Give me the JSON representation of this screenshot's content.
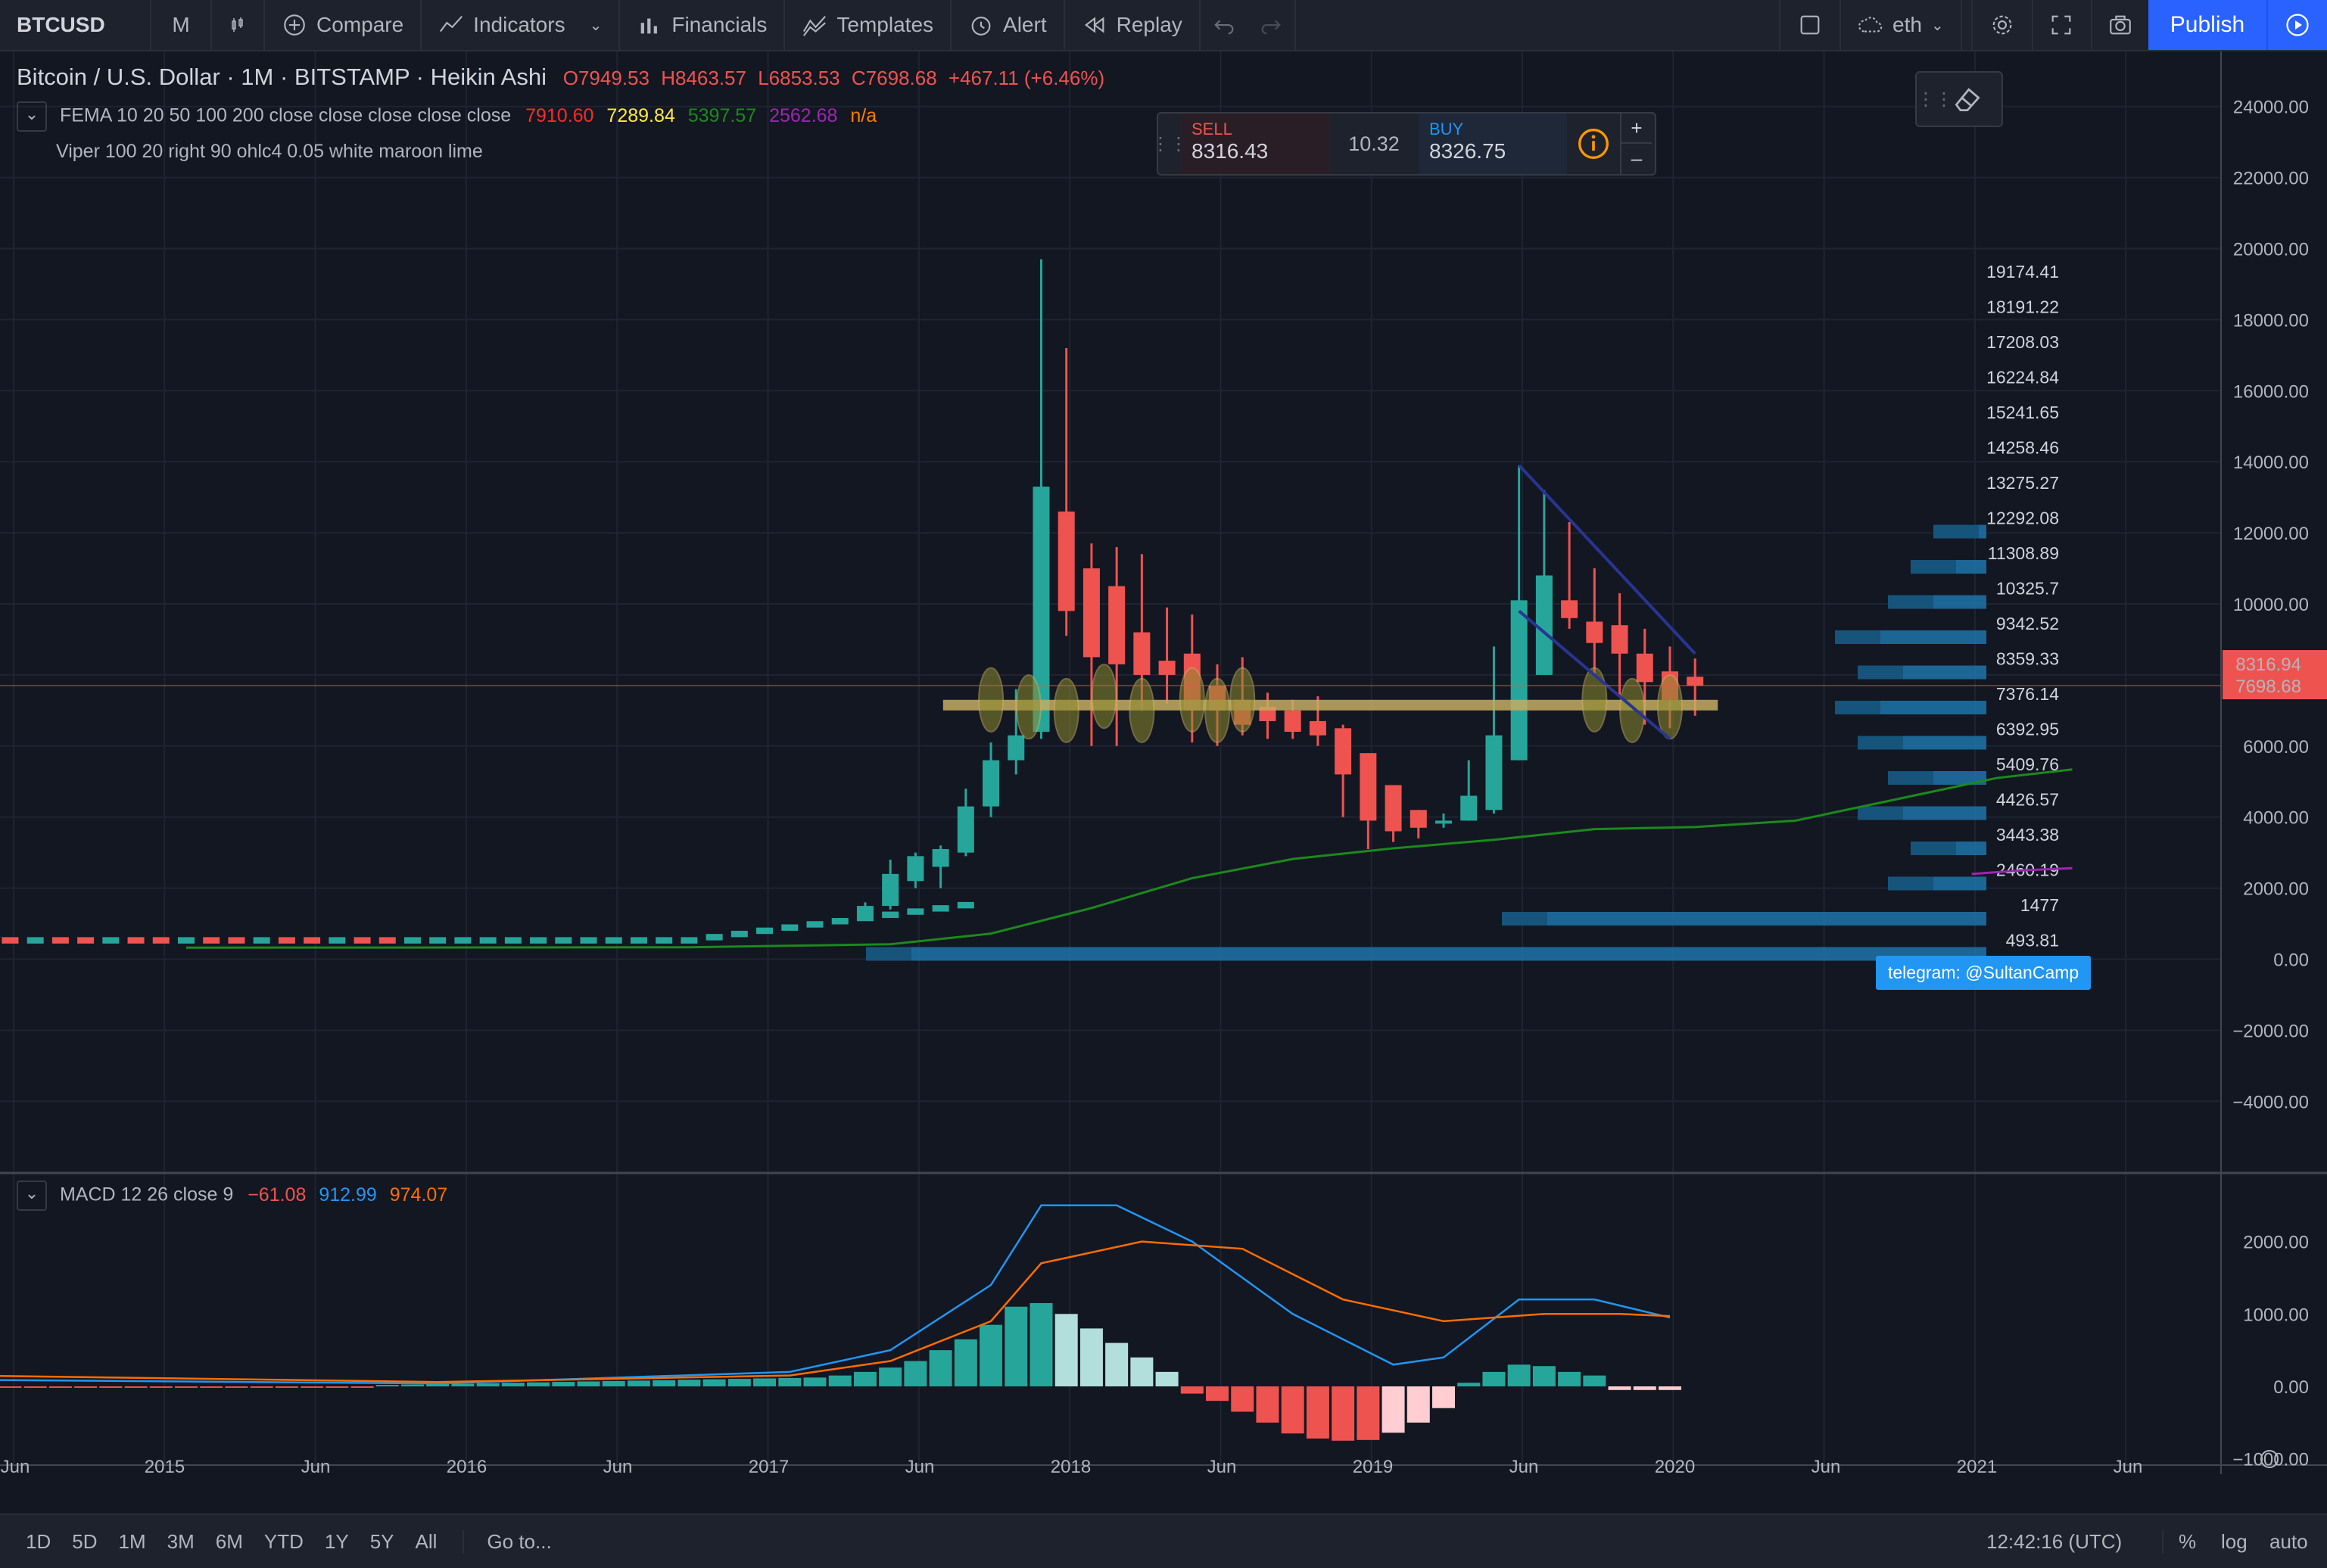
{
  "toolbar": {
    "symbol": "BTCUSD",
    "interval": "M",
    "compare": "Compare",
    "indicators": "Indicators",
    "financials": "Financials",
    "templates": "Templates",
    "alert": "Alert",
    "replay": "Replay",
    "layout_name": "eth",
    "publish": "Publish"
  },
  "legend": {
    "title": "Bitcoin / U.S. Dollar · 1M · BITSTAMP · Heikin Ashi",
    "open": "O7949.53",
    "high": "H8463.57",
    "low": "L6853.53",
    "close": "C7698.68",
    "change": "+467.11 (+6.46%)",
    "fema_label": "FEMA 10 20 50 100 200 close close close close close",
    "fema_v1": "7910.60",
    "fema_v2": "7289.84",
    "fema_v3": "5397.57",
    "fema_v4": "2562.68",
    "fema_v5": "n/a",
    "viper_label": "Viper 100 20 right 90 ohlc4 0.05 white maroon lime",
    "macd_label": "MACD 12 26 close 9",
    "macd_v1": "−61.08",
    "macd_v2": "912.99",
    "macd_v3": "974.07"
  },
  "trade": {
    "sell_label": "SELL",
    "sell_price_main": "8316.",
    "sell_price_frac": "43",
    "spread": "10.32",
    "buy_label": "BUY",
    "buy_price_main": "832",
    "buy_price_frac": "6.75",
    "info_icon": "info-icon"
  },
  "price_axis": [
    "24000.00",
    "22000.00",
    "20000.00",
    "18000.00",
    "16000.00",
    "14000.00",
    "12000.00",
    "10000.00",
    "8000.00",
    "6000.00",
    "4000.00",
    "2000.00",
    "0.00",
    "−2000.00",
    "−4000.00"
  ],
  "price_badges": {
    "upper": "8316.94",
    "lower": "7698.68"
  },
  "volume_profile_levels": [
    "19174.41",
    "18191.22",
    "17208.03",
    "16224.84",
    "15241.65",
    "14258.46",
    "13275.27",
    "12292.08",
    "11308.89",
    "10325.7",
    "9342.52",
    "8359.33",
    "7376.14",
    "6392.95",
    "5409.76",
    "4426.57",
    "3443.38",
    "2460.19",
    "1477",
    "493.81"
  ],
  "telegram_label": "telegram: @SultanCamp",
  "macd_axis": [
    "2000.00",
    "1000.00",
    "0.00",
    "−1000.00"
  ],
  "time_axis": [
    "Jun",
    "2015",
    "Jun",
    "2016",
    "Jun",
    "2017",
    "Jun",
    "2018",
    "Jun",
    "2019",
    "Jun",
    "2020",
    "Jun",
    "2021",
    "Jun"
  ],
  "bottom": {
    "ranges": [
      "1D",
      "5D",
      "1M",
      "3M",
      "6M",
      "YTD",
      "1Y",
      "5Y",
      "All"
    ],
    "goto": "Go to...",
    "clock": "12:42:16 (UTC)",
    "pct": "%",
    "log": "log",
    "auto": "auto"
  },
  "colors": {
    "up": "#26a69a",
    "down": "#ef5350",
    "bg": "#131722",
    "accent": "#2962ff",
    "vp": "#1e88c8"
  },
  "chart_data": {
    "type": "candlestick",
    "chart_style": "Heikin Ashi",
    "interval": "1M",
    "y_range": [
      -5000,
      25000
    ],
    "candles_recent": [
      {
        "x": "2017-09",
        "open": 4300,
        "close": 5600,
        "high": 6100,
        "low": 4000
      },
      {
        "x": "2017-10",
        "open": 5600,
        "close": 6300,
        "high": 7600,
        "low": 5200
      },
      {
        "x": "2017-11",
        "open": 6400,
        "close": 13300,
        "high": 19700,
        "low": 6200
      },
      {
        "x": "2017-12",
        "open": 12600,
        "close": 9800,
        "high": 17200,
        "low": 9100
      },
      {
        "x": "2018-01",
        "open": 11000,
        "close": 8500,
        "high": 11700,
        "low": 6000
      },
      {
        "x": "2018-02",
        "open": 10500,
        "close": 8300,
        "high": 11600,
        "low": 6000
      },
      {
        "x": "2018-03",
        "open": 9200,
        "close": 8000,
        "high": 11400,
        "low": 7000
      },
      {
        "x": "2018-04",
        "open": 8400,
        "close": 8000,
        "high": 9900,
        "low": 7200
      },
      {
        "x": "2018-05",
        "open": 8600,
        "close": 7000,
        "high": 9700,
        "low": 6100
      },
      {
        "x": "2018-06",
        "open": 7700,
        "close": 7000,
        "high": 8300,
        "low": 6000
      },
      {
        "x": "2018-07",
        "open": 7300,
        "close": 6600,
        "high": 8500,
        "low": 6300
      },
      {
        "x": "2018-08",
        "open": 7100,
        "close": 6700,
        "high": 7500,
        "low": 6200
      },
      {
        "x": "2018-09",
        "open": 7000,
        "close": 6400,
        "high": 7300,
        "low": 6200
      },
      {
        "x": "2018-10",
        "open": 6700,
        "close": 6300,
        "high": 7400,
        "low": 6000
      },
      {
        "x": "2018-11",
        "open": 6500,
        "close": 5200,
        "high": 6600,
        "low": 4000
      },
      {
        "x": "2018-12",
        "open": 5800,
        "close": 3900,
        "high": 5800,
        "low": 3100
      },
      {
        "x": "2019-01",
        "open": 4900,
        "close": 3600,
        "high": 4900,
        "low": 3300
      },
      {
        "x": "2019-02",
        "open": 4200,
        "close": 3700,
        "high": 4200,
        "low": 3400
      },
      {
        "x": "2019-03",
        "open": 3900,
        "close": 3900,
        "high": 4100,
        "low": 3700
      },
      {
        "x": "2019-04",
        "open": 3900,
        "close": 4600,
        "high": 5600,
        "low": 3900
      },
      {
        "x": "2019-05",
        "open": 4200,
        "close": 6300,
        "high": 8800,
        "low": 4100
      },
      {
        "x": "2019-06",
        "open": 5600,
        "close": 10100,
        "high": 13900,
        "low": 5600
      },
      {
        "x": "2019-07",
        "open": 8000,
        "close": 10800,
        "high": 13200,
        "low": 8000
      },
      {
        "x": "2019-08",
        "open": 10100,
        "close": 9600,
        "high": 12300,
        "low": 9300
      },
      {
        "x": "2019-09",
        "open": 9500,
        "close": 8900,
        "high": 11000,
        "low": 8000
      },
      {
        "x": "2019-10",
        "open": 9400,
        "close": 8600,
        "high": 10300,
        "low": 7400
      },
      {
        "x": "2019-11",
        "open": 8600,
        "close": 7800,
        "high": 9300,
        "low": 6600
      },
      {
        "x": "2019-12",
        "open": 8100,
        "close": 7300,
        "high": 8800,
        "low": 6500
      },
      {
        "x": "2020-01",
        "open": 7949.53,
        "close": 7698.68,
        "high": 8463.57,
        "low": 6853.53
      }
    ]
  }
}
